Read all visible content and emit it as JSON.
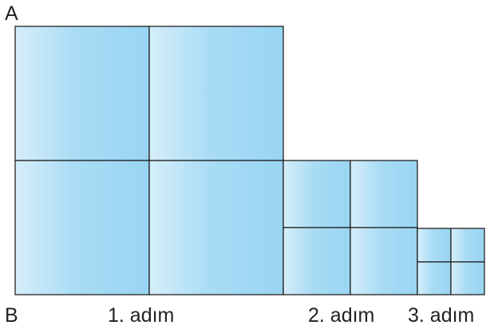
{
  "labels": {
    "corner_top": "A",
    "corner_bottom": "B",
    "step1": "1. adım",
    "step2": "2. adım",
    "step3": "3. adım"
  },
  "steps": [
    {
      "name": "step-1",
      "grid": "2x2",
      "square_count": 4
    },
    {
      "name": "step-2",
      "grid": "2x2",
      "square_count": 4
    },
    {
      "name": "step-3",
      "grid": "2x2",
      "square_count": 4
    }
  ],
  "colors": {
    "fill_light": "#d6eefa",
    "fill_dark": "#98d5f2",
    "stroke": "#222222"
  }
}
